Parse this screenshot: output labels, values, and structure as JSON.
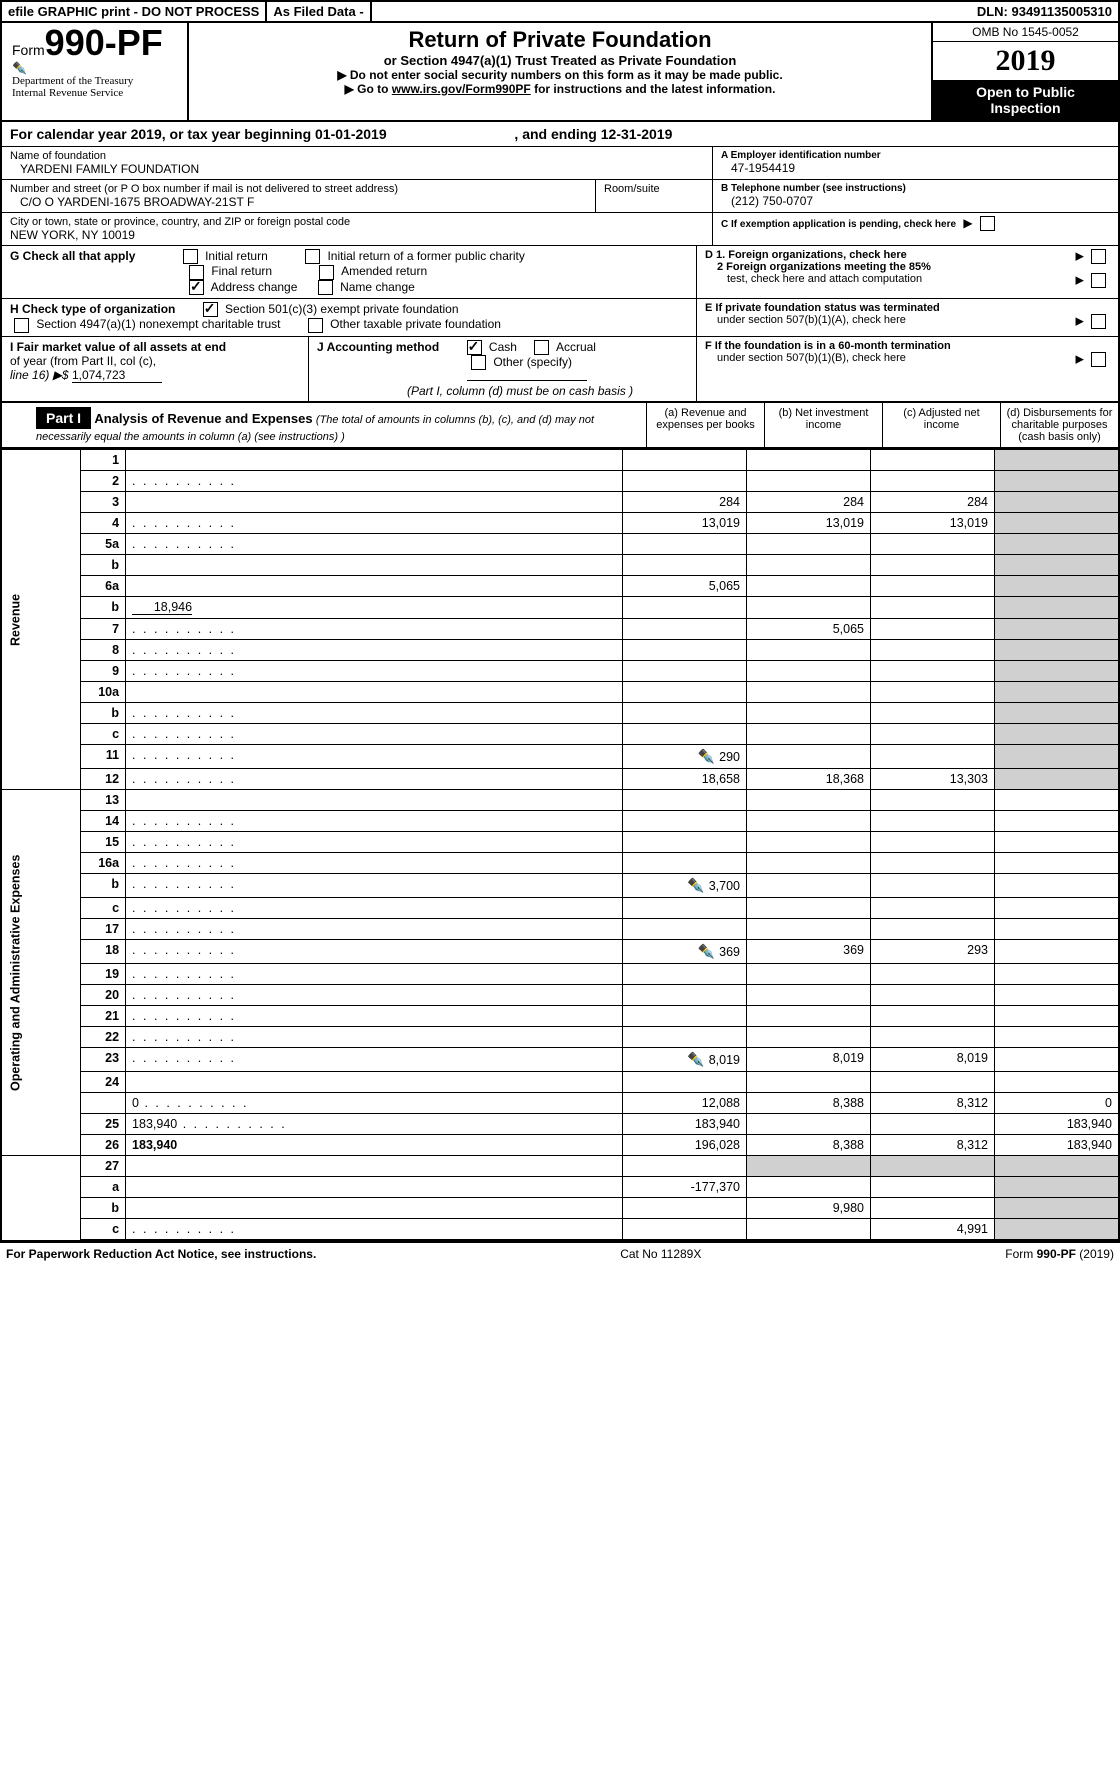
{
  "topbar": {
    "efile": "efile GRAPHIC print - DO NOT PROCESS",
    "asfiled": "As Filed Data -",
    "dln_label": "DLN:",
    "dln": "93491135005310"
  },
  "header": {
    "form_label": "Form",
    "form_no": "990-PF",
    "dept1": "Department of the Treasury",
    "dept2": "Internal Revenue Service",
    "title": "Return of Private Foundation",
    "subtitle": "or Section 4947(a)(1) Trust Treated as Private Foundation",
    "instr1": "▶ Do not enter social security numbers on this form as it may be made public.",
    "instr2_a": "▶ Go to ",
    "instr2_link": "www.irs.gov/Form990PF",
    "instr2_b": " for instructions and the latest information.",
    "omb": "OMB No 1545-0052",
    "year": "2019",
    "open1": "Open to Public",
    "open2": "Inspection"
  },
  "calyear": {
    "text_a": "For calendar year 2019, or tax year beginning ",
    "begin": "01-01-2019",
    "text_b": " , and ending ",
    "end": "12-31-2019"
  },
  "name": {
    "label": "Name of foundation",
    "value": "YARDENI FAMILY FOUNDATION"
  },
  "ein": {
    "label": "A Employer identification number",
    "value": "47-1954419"
  },
  "address": {
    "label": "Number and street (or P O  box number if mail is not delivered to street address)",
    "room_label": "Room/suite",
    "value": "C/O O YARDENI-1675 BROADWAY-21ST F"
  },
  "phone": {
    "label": "B Telephone number (see instructions)",
    "value": "(212) 750-0707"
  },
  "city": {
    "label": "City or town, state or province, country, and ZIP or foreign postal code",
    "value": "NEW YORK, NY  10019"
  },
  "sectionC": "C If exemption application is pending, check here",
  "sectionG": {
    "label": "G Check all that apply",
    "opts": [
      "Initial return",
      "Initial return of a former public charity",
      "Final return",
      "Amended return",
      "Address change",
      "Name change"
    ]
  },
  "sectionD": {
    "d1": "D 1. Foreign organizations, check here",
    "d2a": "2 Foreign organizations meeting the 85%",
    "d2b": "test, check here and attach computation"
  },
  "sectionH": {
    "label": "H Check type of organization",
    "opt1": "Section 501(c)(3) exempt private foundation",
    "opt2": "Section 4947(a)(1) nonexempt charitable trust",
    "opt3": "Other taxable private foundation"
  },
  "sectionE": {
    "l1": "E  If private foundation status was terminated",
    "l2": "under section 507(b)(1)(A), check here"
  },
  "sectionI": {
    "l1": "I Fair market value of all assets at end",
    "l2": "of year (from Part II, col  (c),",
    "l3": "line 16) ▶$ ",
    "val": "1,074,723"
  },
  "sectionJ": {
    "label": "J Accounting method",
    "cash": "Cash",
    "accrual": "Accrual",
    "other": "Other (specify)",
    "note": "(Part I, column (d) must be on cash basis )"
  },
  "sectionF": {
    "l1": "F  If the foundation is in a 60-month termination",
    "l2": "under section 507(b)(1)(B), check here"
  },
  "part1": {
    "label": "Part I",
    "title": "Analysis of Revenue and Expenses",
    "note": " (The total of amounts in columns (b), (c), and (d) may not necessarily equal the amounts in column (a) (see instructions) )",
    "cols": {
      "a": "(a)  Revenue and expenses per books",
      "b": "(b)  Net investment income",
      "c": "(c)  Adjusted net income",
      "d": "(d)  Disbursements for charitable purposes (cash basis only)"
    }
  },
  "side": {
    "revenue": "Revenue",
    "expenses": "Operating and Administrative Expenses"
  },
  "rows": [
    {
      "n": "1",
      "d": "",
      "a": "",
      "b": "",
      "c": ""
    },
    {
      "n": "2",
      "d": "",
      "dots": true,
      "a": "",
      "b": "",
      "c": ""
    },
    {
      "n": "3",
      "d": "",
      "a": "284",
      "b": "284",
      "c": "284"
    },
    {
      "n": "4",
      "d": "",
      "dots": true,
      "a": "13,019",
      "b": "13,019",
      "c": "13,019"
    },
    {
      "n": "5a",
      "d": "",
      "dots": true,
      "a": "",
      "b": "",
      "c": ""
    },
    {
      "n": "b",
      "d": "",
      "a": "",
      "b": "",
      "c": ""
    },
    {
      "n": "6a",
      "d": "",
      "a": "5,065",
      "b": "",
      "c": ""
    },
    {
      "n": "b",
      "d": "",
      "inline": "18,946",
      "a": "",
      "b": "",
      "c": ""
    },
    {
      "n": "7",
      "d": "",
      "dots": true,
      "a": "",
      "b": "5,065",
      "c": ""
    },
    {
      "n": "8",
      "d": "",
      "dots": true,
      "a": "",
      "b": "",
      "c": ""
    },
    {
      "n": "9",
      "d": "",
      "dots": true,
      "a": "",
      "b": "",
      "c": ""
    },
    {
      "n": "10a",
      "d": "",
      "a": "",
      "b": "",
      "c": ""
    },
    {
      "n": "b",
      "d": "",
      "dots": true,
      "a": "",
      "b": "",
      "c": ""
    },
    {
      "n": "c",
      "d": "",
      "dots": true,
      "a": "",
      "b": "",
      "c": ""
    },
    {
      "n": "11",
      "d": "",
      "dots": true,
      "icon": true,
      "a": "290",
      "b": "",
      "c": ""
    },
    {
      "n": "12",
      "d": "",
      "bold": true,
      "dots": true,
      "a": "18,658",
      "b": "18,368",
      "c": "13,303"
    }
  ],
  "exp_rows": [
    {
      "n": "13",
      "d": "",
      "a": "",
      "b": "",
      "c": ""
    },
    {
      "n": "14",
      "d": "",
      "dots": true,
      "a": "",
      "b": "",
      "c": ""
    },
    {
      "n": "15",
      "d": "",
      "dots": true,
      "a": "",
      "b": "",
      "c": ""
    },
    {
      "n": "16a",
      "d": "",
      "dots": true,
      "a": "",
      "b": "",
      "c": ""
    },
    {
      "n": "b",
      "d": "",
      "dots": true,
      "icon": true,
      "a": "3,700",
      "b": "",
      "c": ""
    },
    {
      "n": "c",
      "d": "",
      "dots": true,
      "a": "",
      "b": "",
      "c": ""
    },
    {
      "n": "17",
      "d": "",
      "dots": true,
      "a": "",
      "b": "",
      "c": ""
    },
    {
      "n": "18",
      "d": "",
      "dots": true,
      "icon": true,
      "a": "369",
      "b": "369",
      "c": "293"
    },
    {
      "n": "19",
      "d": "",
      "dots": true,
      "a": "",
      "b": "",
      "c": ""
    },
    {
      "n": "20",
      "d": "",
      "dots": true,
      "a": "",
      "b": "",
      "c": ""
    },
    {
      "n": "21",
      "d": "",
      "dots": true,
      "a": "",
      "b": "",
      "c": ""
    },
    {
      "n": "22",
      "d": "",
      "dots": true,
      "a": "",
      "b": "",
      "c": ""
    },
    {
      "n": "23",
      "d": "",
      "dots": true,
      "icon": true,
      "a": "8,019",
      "b": "8,019",
      "c": "8,019"
    },
    {
      "n": "24",
      "d": "",
      "bold": true,
      "a": "",
      "b": "",
      "c": ""
    },
    {
      "n": "",
      "d": "0",
      "dots": true,
      "a": "12,088",
      "b": "8,388",
      "c": "8,312"
    },
    {
      "n": "25",
      "d": "183,940",
      "dots": true,
      "a": "183,940",
      "b": "",
      "c": ""
    },
    {
      "n": "26",
      "d": "183,940",
      "bold": true,
      "a": "196,028",
      "b": "8,388",
      "c": "8,312"
    }
  ],
  "sub_rows": [
    {
      "n": "27",
      "d": "",
      "a": "",
      "b": "",
      "c": ""
    },
    {
      "n": "a",
      "d": "",
      "bold": true,
      "a": "-177,370",
      "b": "",
      "c": ""
    },
    {
      "n": "b",
      "d": "",
      "bold": true,
      "a": "",
      "b": "9,980",
      "c": ""
    },
    {
      "n": "c",
      "d": "",
      "bold": true,
      "dots": true,
      "a": "",
      "b": "",
      "c": "4,991"
    }
  ],
  "footer": {
    "left": "For Paperwork Reduction Act Notice, see instructions.",
    "mid": "Cat  No  11289X",
    "right_a": "Form ",
    "right_b": "990-PF",
    "right_c": " (2019)"
  }
}
